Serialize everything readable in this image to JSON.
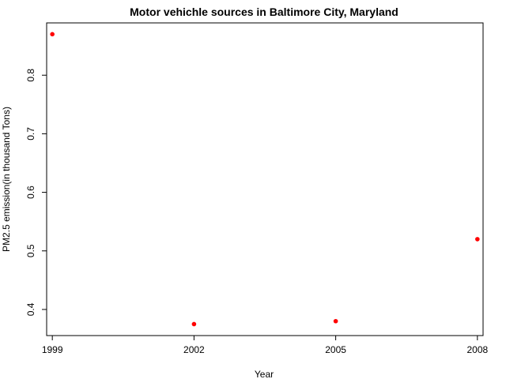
{
  "chart_data": {
    "type": "scatter",
    "title": "Motor vehichle sources in Baltimore City, Maryland",
    "xlabel": "Year",
    "ylabel": "PM2.5 emission(in thousand Tons)",
    "x_ticks": [
      "1999",
      "2002",
      "2005",
      "2008"
    ],
    "y_ticks": [
      "0.4",
      "0.5",
      "0.6",
      "0.7",
      "0.8"
    ],
    "xlim": [
      1998.88,
      2008.12
    ],
    "ylim": [
      0.3554,
      0.8893
    ],
    "grid": false,
    "legend": "none",
    "series": [
      {
        "color": "#ff0000",
        "x": [
          1999,
          2002,
          2005,
          2008
        ],
        "y": [
          0.87,
          0.375,
          0.38,
          0.52
        ]
      }
    ]
  }
}
